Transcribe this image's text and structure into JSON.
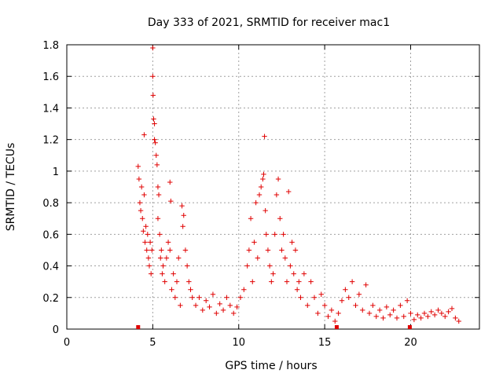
{
  "chart_data": {
    "type": "scatter",
    "title": "Day 333 of 2021, SRMTID for receiver mac1",
    "xlabel": "GPS time / hours",
    "ylabel": "SRMTID / TECUs",
    "xlim": [
      0,
      24
    ],
    "ylim": [
      0,
      1.8
    ],
    "xticks": [
      "0",
      "5",
      "10",
      "15",
      "20"
    ],
    "xtick_values": [
      0,
      5,
      10,
      15,
      20
    ],
    "yticks": [
      "0",
      "0.2",
      "0.4",
      "0.6",
      "0.8",
      "1",
      "1.2",
      "1.4",
      "1.6",
      "1.8"
    ],
    "ytick_values": [
      0,
      0.2,
      0.4,
      0.6,
      0.8,
      1.0,
      1.2,
      1.4,
      1.6,
      1.8
    ],
    "grid": true,
    "marker": "plus",
    "color": "#e00000",
    "series": [
      {
        "name": "SRMTID",
        "points": [
          [
            4.15,
            1.03
          ],
          [
            4.2,
            0.95
          ],
          [
            4.25,
            0.8
          ],
          [
            4.3,
            0.75
          ],
          [
            4.35,
            0.9
          ],
          [
            4.4,
            0.7
          ],
          [
            4.45,
            0.62
          ],
          [
            4.5,
            1.23
          ],
          [
            4.5,
            0.85
          ],
          [
            4.55,
            0.55
          ],
          [
            4.6,
            0.65
          ],
          [
            4.65,
            0.5
          ],
          [
            4.7,
            0.6
          ],
          [
            4.75,
            0.45
          ],
          [
            4.8,
            0.4
          ],
          [
            4.85,
            0.55
          ],
          [
            4.9,
            0.35
          ],
          [
            4.95,
            0.5
          ],
          [
            5.0,
            1.78
          ],
          [
            5.0,
            1.6
          ],
          [
            5.02,
            1.48
          ],
          [
            5.05,
            1.33
          ],
          [
            5.1,
            1.3
          ],
          [
            5.1,
            1.2
          ],
          [
            5.15,
            1.18
          ],
          [
            5.2,
            1.1
          ],
          [
            5.25,
            1.04
          ],
          [
            5.3,
            0.9
          ],
          [
            5.3,
            0.7
          ],
          [
            5.35,
            0.85
          ],
          [
            5.4,
            0.6
          ],
          [
            5.45,
            0.45
          ],
          [
            5.5,
            0.5
          ],
          [
            5.55,
            0.35
          ],
          [
            5.6,
            0.4
          ],
          [
            5.7,
            0.3
          ],
          [
            5.8,
            0.45
          ],
          [
            5.9,
            0.55
          ],
          [
            6.0,
            0.93
          ],
          [
            6.0,
            0.5
          ],
          [
            6.05,
            0.81
          ],
          [
            6.1,
            0.25
          ],
          [
            6.2,
            0.35
          ],
          [
            6.3,
            0.2
          ],
          [
            6.4,
            0.3
          ],
          [
            6.5,
            0.45
          ],
          [
            6.6,
            0.15
          ],
          [
            6.7,
            0.78
          ],
          [
            6.75,
            0.65
          ],
          [
            6.8,
            0.72
          ],
          [
            6.9,
            0.5
          ],
          [
            7.0,
            0.4
          ],
          [
            7.1,
            0.3
          ],
          [
            7.2,
            0.25
          ],
          [
            7.3,
            0.2
          ],
          [
            7.5,
            0.15
          ],
          [
            7.7,
            0.2
          ],
          [
            7.9,
            0.12
          ],
          [
            8.1,
            0.18
          ],
          [
            8.3,
            0.14
          ],
          [
            8.5,
            0.22
          ],
          [
            8.7,
            0.1
          ],
          [
            8.9,
            0.16
          ],
          [
            9.1,
            0.12
          ],
          [
            9.3,
            0.2
          ],
          [
            9.5,
            0.15
          ],
          [
            9.7,
            0.1
          ],
          [
            9.9,
            0.14
          ],
          [
            10.1,
            0.2
          ],
          [
            10.3,
            0.25
          ],
          [
            10.5,
            0.4
          ],
          [
            10.6,
            0.5
          ],
          [
            10.7,
            0.7
          ],
          [
            10.8,
            0.3
          ],
          [
            10.9,
            0.55
          ],
          [
            11.0,
            0.8
          ],
          [
            11.1,
            0.45
          ],
          [
            11.2,
            0.85
          ],
          [
            11.3,
            0.9
          ],
          [
            11.4,
            0.95
          ],
          [
            11.45,
            0.98
          ],
          [
            11.5,
            1.22
          ],
          [
            11.55,
            0.75
          ],
          [
            11.6,
            0.6
          ],
          [
            11.7,
            0.5
          ],
          [
            11.8,
            0.4
          ],
          [
            11.9,
            0.3
          ],
          [
            12.0,
            0.35
          ],
          [
            12.1,
            0.6
          ],
          [
            12.2,
            0.85
          ],
          [
            12.3,
            0.95
          ],
          [
            12.4,
            0.7
          ],
          [
            12.5,
            0.5
          ],
          [
            12.6,
            0.6
          ],
          [
            12.7,
            0.45
          ],
          [
            12.8,
            0.3
          ],
          [
            12.9,
            0.87
          ],
          [
            13.0,
            0.4
          ],
          [
            13.1,
            0.55
          ],
          [
            13.2,
            0.35
          ],
          [
            13.3,
            0.5
          ],
          [
            13.4,
            0.25
          ],
          [
            13.5,
            0.3
          ],
          [
            13.6,
            0.2
          ],
          [
            13.8,
            0.35
          ],
          [
            14.0,
            0.15
          ],
          [
            14.2,
            0.3
          ],
          [
            14.4,
            0.2
          ],
          [
            14.6,
            0.1
          ],
          [
            14.8,
            0.22
          ],
          [
            15.0,
            0.15
          ],
          [
            15.2,
            0.08
          ],
          [
            15.4,
            0.12
          ],
          [
            15.6,
            0.05
          ],
          [
            15.8,
            0.1
          ],
          [
            16.0,
            0.18
          ],
          [
            16.2,
            0.25
          ],
          [
            16.4,
            0.2
          ],
          [
            16.6,
            0.3
          ],
          [
            16.8,
            0.15
          ],
          [
            17.0,
            0.22
          ],
          [
            17.2,
            0.12
          ],
          [
            17.4,
            0.28
          ],
          [
            17.6,
            0.1
          ],
          [
            17.8,
            0.15
          ],
          [
            18.0,
            0.08
          ],
          [
            18.2,
            0.12
          ],
          [
            18.4,
            0.07
          ],
          [
            18.6,
            0.14
          ],
          [
            18.8,
            0.09
          ],
          [
            19.0,
            0.12
          ],
          [
            19.2,
            0.07
          ],
          [
            19.4,
            0.15
          ],
          [
            19.6,
            0.08
          ],
          [
            19.8,
            0.18
          ],
          [
            20.0,
            0.1
          ],
          [
            20.2,
            0.06
          ],
          [
            20.4,
            0.09
          ],
          [
            20.6,
            0.07
          ],
          [
            20.8,
            0.1
          ],
          [
            21.0,
            0.08
          ],
          [
            21.2,
            0.11
          ],
          [
            21.4,
            0.09
          ],
          [
            21.6,
            0.12
          ],
          [
            21.8,
            0.1
          ],
          [
            22.0,
            0.08
          ],
          [
            22.2,
            0.11
          ],
          [
            22.4,
            0.13
          ],
          [
            22.6,
            0.07
          ],
          [
            22.8,
            0.05
          ]
        ]
      }
    ],
    "gap_markers_x": [
      4.15,
      15.7,
      19.95
    ]
  }
}
